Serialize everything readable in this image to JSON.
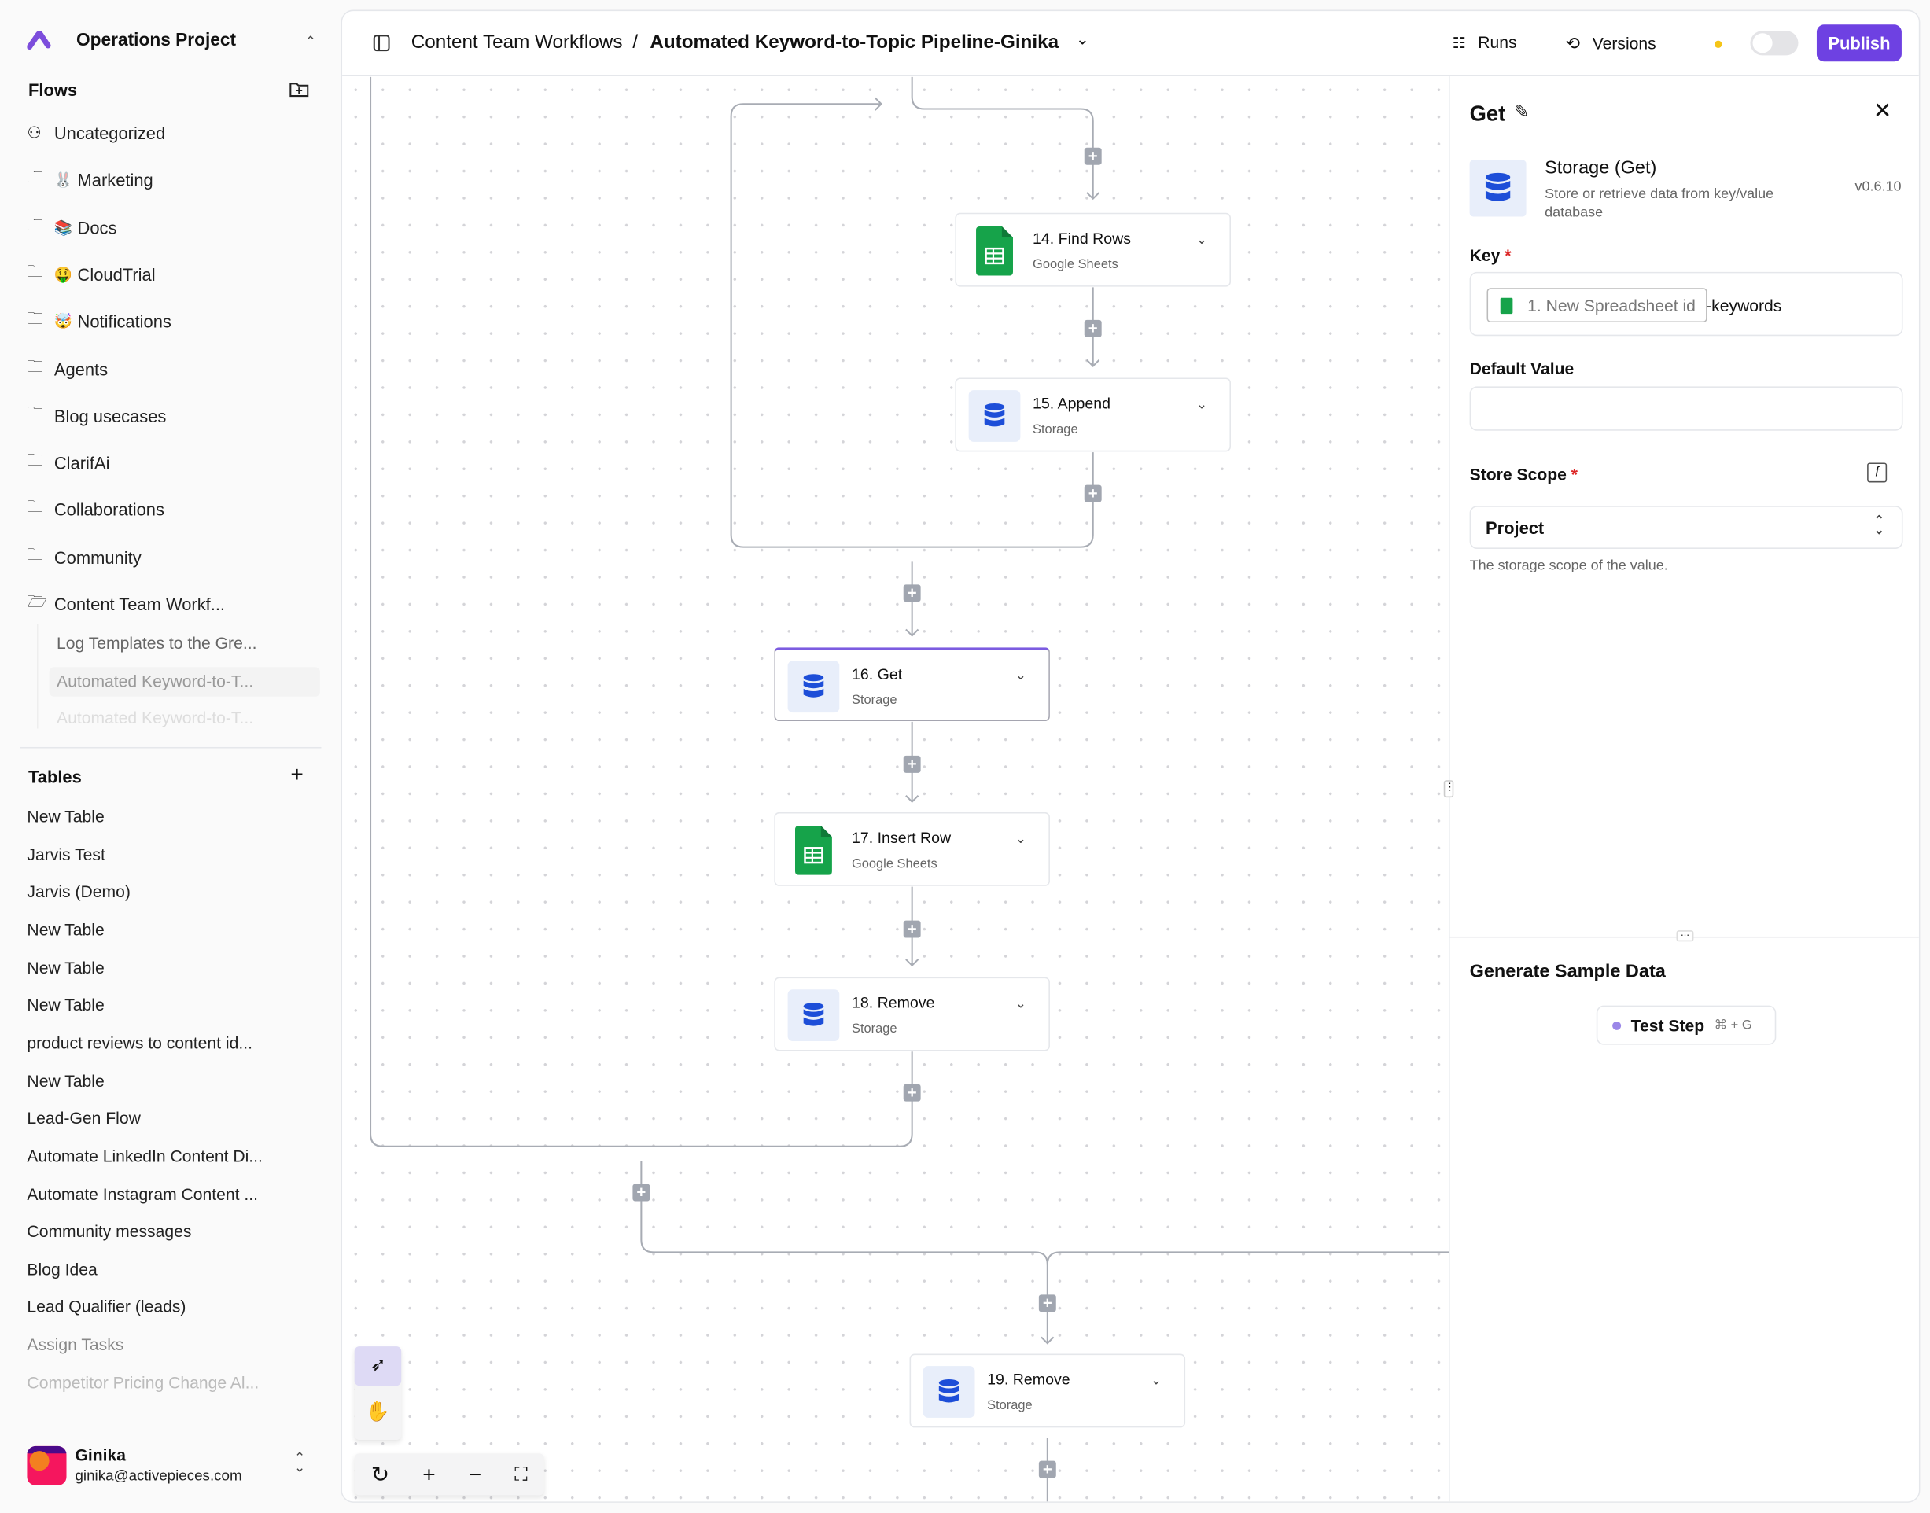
{
  "sidebar": {
    "project": "Operations Project",
    "flows_heading": "Flows",
    "folders": [
      {
        "label": "Uncategorized",
        "icon": "shapes-icon",
        "emoji": ""
      },
      {
        "label": "Marketing",
        "icon": "folder-icon",
        "emoji": "🐰"
      },
      {
        "label": "Docs",
        "icon": "folder-icon",
        "emoji": "📚"
      },
      {
        "label": "CloudTrial",
        "icon": "folder-icon",
        "emoji": "🤑"
      },
      {
        "label": "Notifications",
        "icon": "folder-icon",
        "emoji": "🤯"
      },
      {
        "label": "Agents",
        "icon": "folder-icon",
        "emoji": ""
      },
      {
        "label": "Blog usecases",
        "icon": "folder-icon",
        "emoji": ""
      },
      {
        "label": "ClarifAi",
        "icon": "folder-icon",
        "emoji": ""
      },
      {
        "label": "Collaborations",
        "icon": "folder-icon",
        "emoji": ""
      },
      {
        "label": "Community",
        "icon": "folder-icon",
        "emoji": ""
      },
      {
        "label": "Content Team Workf...",
        "icon": "folder-open-icon",
        "emoji": ""
      }
    ],
    "subflows": [
      "Log Templates to the Gre...",
      "Automated Keyword-to-T...",
      "Automated Keyword-to-T..."
    ],
    "tables_heading": "Tables",
    "tables": [
      "New Table",
      "Jarvis Test",
      "Jarvis (Demo)",
      "New Table",
      "New Table",
      "New Table",
      "product reviews to content id...",
      "New Table",
      "Lead-Gen Flow",
      "Automate LinkedIn Content Di...",
      "Automate Instagram Content ...",
      "Community messages",
      "Blog Idea",
      "Lead Qualifier (leads)",
      "Assign Tasks",
      "Competitor Pricing Change Al..."
    ],
    "user": {
      "name": "Ginika",
      "email": "ginika@activepieces.com"
    }
  },
  "header": {
    "folder": "Content Team Workflows",
    "separator": "/",
    "flow_name": "Automated Keyword-to-Topic Pipeline-Ginika",
    "runs": "Runs",
    "versions": "Versions",
    "publish": "Publish",
    "enabled": false,
    "accent": "#6e41e2"
  },
  "canvas": {
    "nodes": [
      {
        "title": "14. Find Rows",
        "sub": "Google Sheets",
        "type": "sheets"
      },
      {
        "title": "15. Append",
        "sub": "Storage",
        "type": "storage"
      },
      {
        "title": "16. Get",
        "sub": "Storage",
        "type": "storage",
        "selected": true
      },
      {
        "title": "17. Insert Row",
        "sub": "Google Sheets",
        "type": "sheets"
      },
      {
        "title": "18. Remove",
        "sub": "Storage",
        "type": "storage"
      },
      {
        "title": "19. Remove",
        "sub": "Storage",
        "type": "storage"
      }
    ]
  },
  "panel": {
    "title": "Get",
    "piece_name": "Storage (Get)",
    "piece_desc": "Store or retrieve data from key/value database",
    "version": "v0.6.10",
    "key_label": "Key",
    "key_chip": "1. New Spreadsheet id",
    "key_suffix": "-keywords",
    "default_label": "Default Value",
    "default_value": "",
    "scope_label": "Store Scope",
    "scope_value": "Project",
    "scope_help": "The storage scope of the value.",
    "sample_heading": "Generate Sample Data",
    "test_step": "Test Step",
    "shortcut": "⌘ + G",
    "required": "*"
  }
}
